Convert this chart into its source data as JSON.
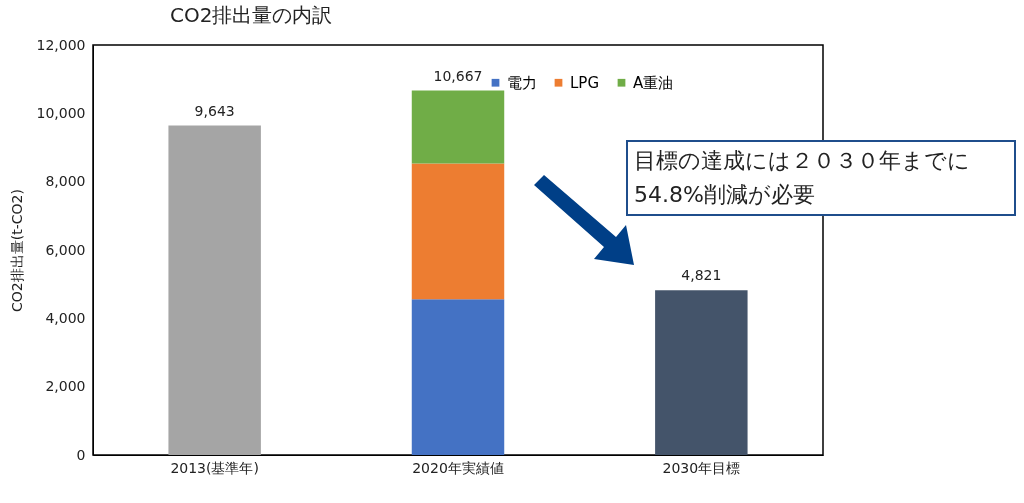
{
  "chart_data": {
    "type": "bar",
    "title": "CO2排出量の内訳",
    "ylabel": "CO2排出量(t-CO2)",
    "categories": [
      "2013(基準年)",
      "2020年実績値",
      "2030年目標"
    ],
    "stacked": true,
    "series": [
      {
        "color": "#a5a5a5",
        "values": [
          9643,
          null,
          null
        ]
      },
      {
        "name": "電力",
        "color": "#4472c4",
        "values": [
          null,
          4560,
          null
        ]
      },
      {
        "name": "LPG",
        "color": "#ed7d31",
        "values": [
          null,
          3970,
          null
        ]
      },
      {
        "name": "A重油",
        "color": "#70ad47",
        "values": [
          null,
          2137,
          null
        ]
      },
      {
        "color": "#44546a",
        "values": [
          null,
          null,
          4821
        ]
      }
    ],
    "totals": [
      "9,643",
      "10,667",
      "4,821"
    ],
    "ylim": [
      0,
      12000
    ],
    "yticks": [
      0,
      {
        "value": 2000,
        "label": "2,000"
      },
      {
        "value": 4000,
        "label": "4,000"
      },
      {
        "value": 6000,
        "label": "6,000"
      },
      {
        "value": 8000,
        "label": "8,000"
      },
      {
        "value": 10000,
        "label": "10,000"
      },
      {
        "value": 12000,
        "label": "12,000"
      }
    ],
    "grid": false,
    "legend": "top right",
    "annotations": [
      "目標の達成には２０３０年までに\n54.8%削減が必要"
    ]
  }
}
